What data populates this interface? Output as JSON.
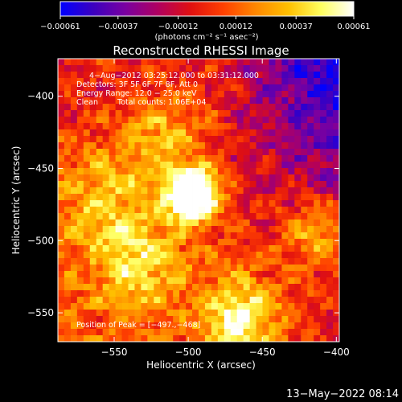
{
  "chart_data": {
    "type": "heatmap",
    "title": "Reconstructed RHESSI Image",
    "xlabel": "Heliocentric X (arcsec)",
    "ylabel": "Heliocentric Y (arcsec)",
    "xlim": [
      -588,
      -398
    ],
    "ylim": [
      -570,
      -374
    ],
    "x_ticks": [
      -550,
      -500,
      -450,
      -400
    ],
    "x_tick_labels": [
      "−550",
      "−500",
      "−450",
      "−400"
    ],
    "y_ticks": [
      -400,
      -450,
      -500,
      -550
    ],
    "y_tick_labels": [
      "−400",
      "−450",
      "−500",
      "−550"
    ],
    "colorbar": {
      "min": -0.00061,
      "max": 0.00061,
      "ticks": [
        -0.00061,
        -0.00037,
        -0.00012,
        0.00012,
        0.00037,
        0.00061
      ],
      "tick_labels": [
        "−0.00061",
        "−0.00037",
        "−0.00012",
        "0.00012",
        "0.00037",
        "0.00061"
      ],
      "units_label": "(photons cm⁻² s⁻¹ asec⁻²)",
      "colors": [
        "#0000ff",
        "#3b00c0",
        "#7a00a0",
        "#b00060",
        "#e01010",
        "#ff4000",
        "#ff8800",
        "#ffc000",
        "#ffff60",
        "#ffffff"
      ]
    },
    "annotations": {
      "time_range": "4−Aug−2012 03:25:12.000 to 03:31:12.000",
      "detectors": "Detectors: 3F 5F 6F 7F 8F, Att 0",
      "energy_range": "Energy Range: 12.0 − 25.0 keV",
      "method": "Clean",
      "total_counts": "Total counts: 1.06E+04",
      "peak_position": "Position of Peak = [−497.,−468]"
    },
    "peak": {
      "x": -497,
      "y": -468
    },
    "footer_date": "13−May−2022 08:14"
  }
}
